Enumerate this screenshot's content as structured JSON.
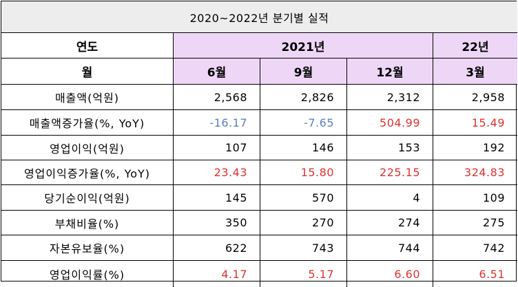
{
  "title": "2020~2022년 분기별 실적",
  "header": {
    "year_label": "연도",
    "year_2021": "2021년",
    "year_22": "22년",
    "month_label": "월",
    "months": [
      "6월",
      "9월",
      "12월",
      "3월"
    ]
  },
  "rows": [
    {
      "label": "매출액(억원)",
      "values": [
        "2,568",
        "2,826",
        "2,312",
        "2,958"
      ]
    },
    {
      "label": "매출액증가율(%, YoY)",
      "values": [
        "-16.17",
        "-7.65",
        "504.99",
        "15.49"
      ]
    },
    {
      "label": "영업이익(억원)",
      "values": [
        "107",
        "146",
        "153",
        "192"
      ]
    },
    {
      "label": "영업이익증가율(%, YoY)",
      "values": [
        "23.43",
        "15.80",
        "225.15",
        "324.83"
      ]
    },
    {
      "label": "당기순이익(억원)",
      "values": [
        "145",
        "570",
        "4",
        "109"
      ]
    },
    {
      "label": "부채비율(%)",
      "values": [
        "350",
        "270",
        "274",
        "275"
      ]
    },
    {
      "label": "자본유보율(%)",
      "values": [
        "622",
        "743",
        "744",
        "742"
      ]
    },
    {
      "label": "영업이익률(%)",
      "values": [
        "4.17",
        "5.17",
        "6.60",
        "6.51"
      ]
    }
  ],
  "colors": {
    "negative": "#5b7fc2",
    "positive": "#e0312f",
    "header_bg": "#eed7f6",
    "title_bg": "#ededed"
  }
}
